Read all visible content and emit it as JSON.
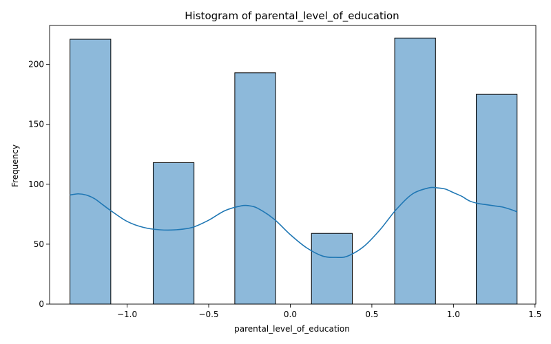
{
  "chart_data": {
    "type": "bar",
    "title": "Histogram of parental_level_of_education",
    "xlabel": "parental_level_of_education",
    "ylabel": "Frequency",
    "xlim": [
      -1.475,
      1.505
    ],
    "ylim": [
      0,
      232.5
    ],
    "xticks": [
      -1.0,
      -0.5,
      0.0,
      0.5,
      1.0,
      1.5
    ],
    "xtick_labels": [
      "−1.0",
      "−0.5",
      "0.0",
      "0.5",
      "1.0",
      "1.5"
    ],
    "yticks": [
      0,
      50,
      100,
      150,
      200
    ],
    "ytick_labels": [
      "0",
      "50",
      "100",
      "150",
      "200"
    ],
    "bars": [
      {
        "x0": -1.35,
        "x1": -1.1,
        "value": 221
      },
      {
        "x0": -0.84,
        "x1": -0.59,
        "value": 118
      },
      {
        "x0": -0.34,
        "x1": -0.09,
        "value": 193
      },
      {
        "x0": 0.13,
        "x1": 0.38,
        "value": 59
      },
      {
        "x0": 0.64,
        "x1": 0.89,
        "value": 222
      },
      {
        "x0": 1.14,
        "x1": 1.39,
        "value": 175
      }
    ],
    "kde": {
      "x": [
        -1.35,
        -1.3,
        -1.25,
        -1.2,
        -1.15,
        -1.1,
        -1.0,
        -0.9,
        -0.8,
        -0.7,
        -0.6,
        -0.5,
        -0.4,
        -0.3,
        -0.25,
        -0.2,
        -0.1,
        0.0,
        0.1,
        0.2,
        0.28,
        0.35,
        0.45,
        0.55,
        0.65,
        0.75,
        0.85,
        0.9,
        0.95,
        1.0,
        1.05,
        1.1,
        1.15,
        1.2,
        1.25,
        1.3,
        1.35,
        1.39
      ],
      "y": [
        91,
        92,
        91,
        88,
        83,
        78,
        69,
        64,
        62,
        62,
        64,
        70,
        78,
        82,
        82,
        80,
        71,
        58,
        47,
        40,
        39,
        40,
        48,
        62,
        79,
        92,
        97,
        97,
        96,
        93,
        90,
        86,
        84,
        83,
        82,
        81,
        79,
        77
      ]
    },
    "grid": false,
    "legend": "none"
  }
}
